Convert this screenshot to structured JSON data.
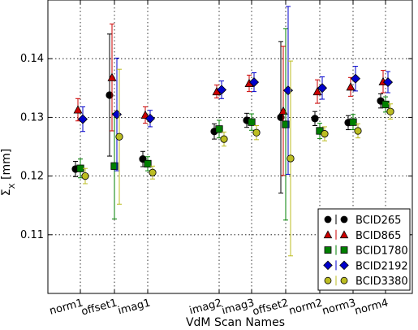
{
  "chart_data": {
    "type": "scatter",
    "xlabel": "VdM Scan Names",
    "ylabel": "Σ_X [mm]",
    "categories": [
      "norm1",
      "offset1",
      "imag1",
      "imag2",
      "imag3",
      "offset2",
      "norm2",
      "norm3",
      "norm4"
    ],
    "ylim": [
      0.1,
      0.15
    ],
    "yticks": [
      "0.11",
      "0.12",
      "0.13",
      "0.14"
    ],
    "ytick_values": [
      0.11,
      0.12,
      0.13,
      0.14
    ],
    "grid": true,
    "legend_position": "lower-right",
    "series": [
      {
        "name": "BCID265",
        "marker": "circle",
        "color": "#000000",
        "values": [
          0.1212,
          0.1338,
          0.1229,
          0.1276,
          0.1295,
          0.13,
          0.1298,
          0.1291,
          0.1328
        ],
        "errors": [
          0.0013,
          0.0104,
          0.0013,
          0.0013,
          0.0012,
          0.0129,
          0.0012,
          0.0012,
          0.0012
        ]
      },
      {
        "name": "BCID865",
        "marker": "triangle",
        "color": "#cc0000",
        "values": [
          0.1313,
          0.1368,
          0.1304,
          0.1344,
          0.1358,
          0.1311,
          0.1344,
          0.1352,
          0.1361
        ],
        "errors": [
          0.0019,
          0.0091,
          0.0014,
          0.0011,
          0.0014,
          0.011,
          0.002,
          0.0016,
          0.0019
        ]
      },
      {
        "name": "BCID1780",
        "marker": "square",
        "color": "#008000",
        "values": [
          0.1213,
          0.1217,
          0.1221,
          0.128,
          0.1292,
          0.1288,
          0.1277,
          0.1292,
          0.1322
        ],
        "errors": [
          0.0016,
          0.009,
          0.0012,
          0.0015,
          0.0014,
          0.0163,
          0.0013,
          0.0013,
          0.0013
        ]
      },
      {
        "name": "BCID2192",
        "marker": "diamond",
        "color": "#0000cc",
        "values": [
          0.1297,
          0.1305,
          0.1298,
          0.1347,
          0.136,
          0.1346,
          0.135,
          0.1366,
          0.136
        ],
        "errors": [
          0.0021,
          0.0096,
          0.0014,
          0.0015,
          0.0016,
          0.0143,
          0.0019,
          0.0021,
          0.0018
        ]
      },
      {
        "name": "BCID3380",
        "marker": "circle",
        "color": "#bcbd22",
        "values": [
          0.12,
          0.1267,
          0.1206,
          0.1263,
          0.1274,
          0.123,
          0.1272,
          0.1277,
          0.131
        ],
        "errors": [
          0.0013,
          0.0115,
          0.0011,
          0.0012,
          0.0012,
          0.0166,
          0.0012,
          0.0012,
          0.0013
        ]
      }
    ]
  }
}
